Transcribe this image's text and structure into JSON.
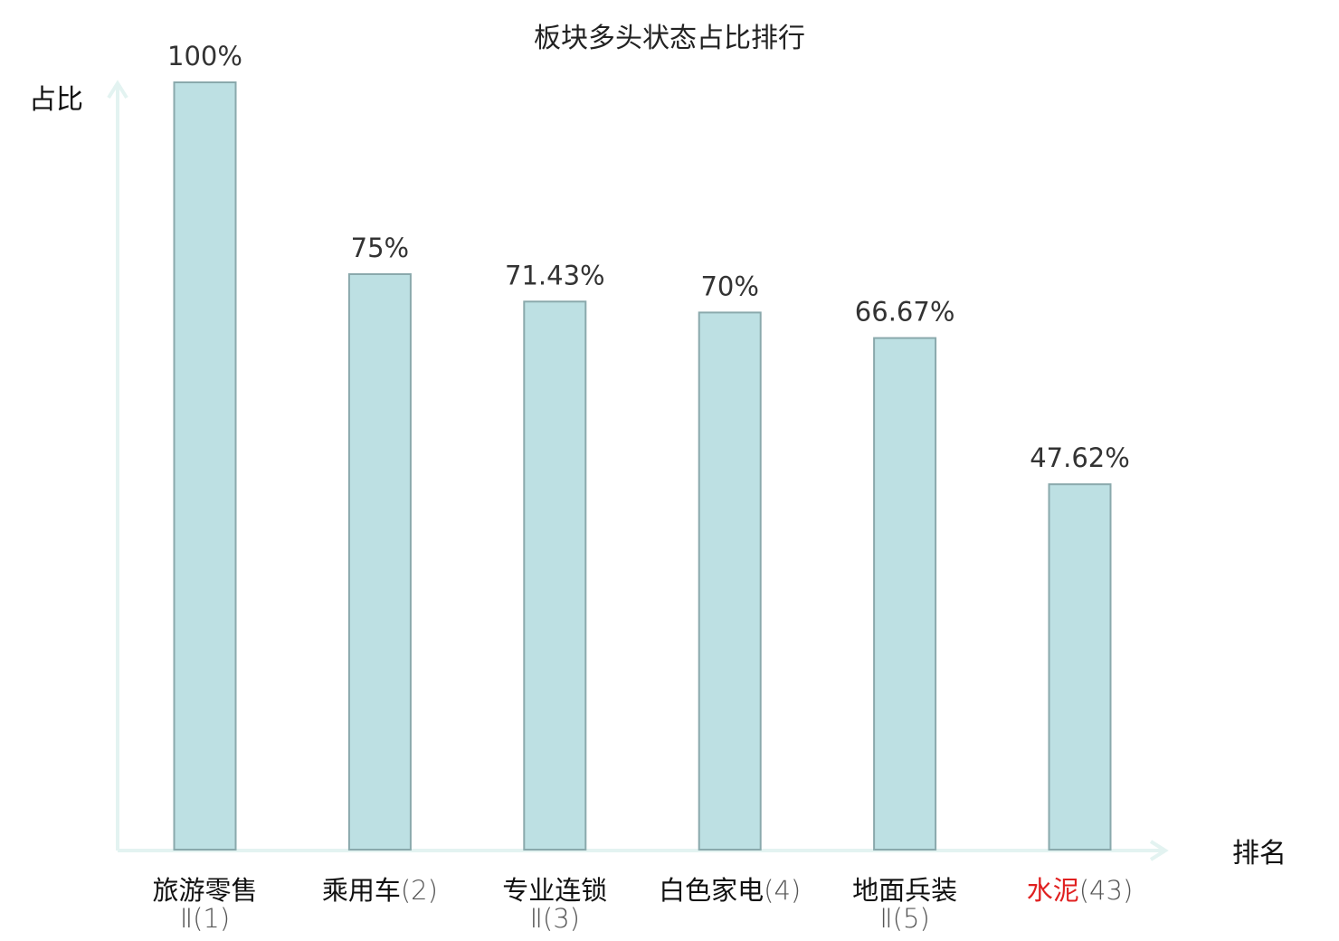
{
  "chart_data": {
    "type": "bar",
    "title": "板块多头状态占比排行",
    "ylabel": "占比",
    "xlabel": "排名",
    "ylim": [
      0,
      100
    ],
    "value_suffix": "%",
    "categories": [
      {
        "line1": "旅游零售",
        "line2": "Ⅱ(1)",
        "value": 100,
        "label": "100%",
        "highlight": false
      },
      {
        "line1": "乘用车",
        "line2": "(2)",
        "value": 75,
        "label": "75%",
        "highlight": false
      },
      {
        "line1": "专业连锁",
        "line2": "Ⅱ(3)",
        "value": 71.43,
        "label": "71.43%",
        "highlight": false
      },
      {
        "line1": "白色家电",
        "line2": "(4)",
        "value": 70,
        "label": "70%",
        "highlight": false
      },
      {
        "line1": "地面兵装",
        "line2": "Ⅱ(5)",
        "value": 66.67,
        "label": "66.67%",
        "highlight": false
      },
      {
        "line1": "水泥",
        "line2": "(43)",
        "value": 47.62,
        "label": "47.62%",
        "highlight": true
      }
    ],
    "grid": false,
    "legend": "none",
    "colors": {
      "bar_fill": "#bde0e3",
      "bar_stroke": "#8aa9ac",
      "axis": "#e3f3f1",
      "highlight_text": "#e02020",
      "text": "#111111"
    }
  }
}
